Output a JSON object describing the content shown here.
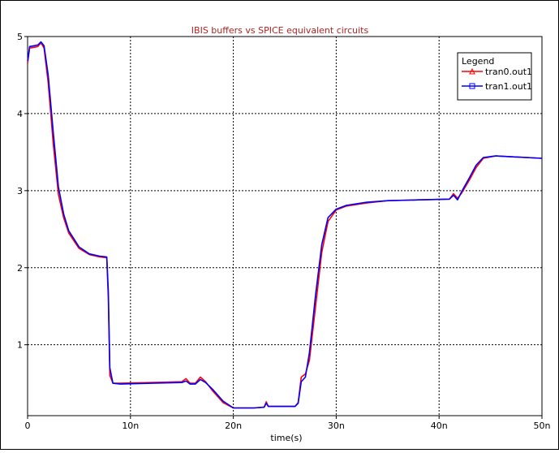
{
  "chart_data": {
    "type": "line",
    "title": "IBIS buffers vs SPICE equivalent circuits",
    "xlabel": "time(s)",
    "ylabel": "",
    "xlim": [
      0,
      50
    ],
    "ylim": [
      0.08,
      5.0
    ],
    "x_ticks": [
      {
        "value": 0,
        "label": "0"
      },
      {
        "value": 10,
        "label": "10n"
      },
      {
        "value": 20,
        "label": "20n"
      },
      {
        "value": 30,
        "label": "30n"
      },
      {
        "value": 40,
        "label": "40n"
      },
      {
        "value": 50,
        "label": "50n"
      }
    ],
    "y_ticks": [
      {
        "value": 1,
        "label": "1"
      },
      {
        "value": 2,
        "label": "2"
      },
      {
        "value": 3,
        "label": "3"
      },
      {
        "value": 4,
        "label": "4"
      },
      {
        "value": 5,
        "label": "5"
      }
    ],
    "grid": true,
    "legend": {
      "title": "Legend",
      "position": "top-right"
    },
    "series": [
      {
        "name": "tran0.out1",
        "color": "#ff0000",
        "marker": "triangle",
        "points": [
          [
            0,
            4.65
          ],
          [
            0.2,
            4.85
          ],
          [
            0.6,
            4.86
          ],
          [
            1.0,
            4.87
          ],
          [
            1.3,
            4.92
          ],
          [
            1.6,
            4.85
          ],
          [
            2.0,
            4.4
          ],
          [
            2.5,
            3.6
          ],
          [
            3.0,
            2.95
          ],
          [
            3.5,
            2.65
          ],
          [
            4.0,
            2.45
          ],
          [
            5.0,
            2.25
          ],
          [
            6.0,
            2.17
          ],
          [
            7.0,
            2.14
          ],
          [
            7.7,
            2.13
          ],
          [
            7.85,
            1.6
          ],
          [
            8.0,
            0.6
          ],
          [
            8.3,
            0.5
          ],
          [
            9.0,
            0.5
          ],
          [
            12.0,
            0.51
          ],
          [
            15.0,
            0.52
          ],
          [
            15.4,
            0.56
          ],
          [
            15.8,
            0.5
          ],
          [
            16.3,
            0.5
          ],
          [
            16.8,
            0.58
          ],
          [
            17.3,
            0.52
          ],
          [
            18.0,
            0.4
          ],
          [
            19.0,
            0.25
          ],
          [
            20.0,
            0.18
          ],
          [
            22.0,
            0.18
          ],
          [
            23.0,
            0.19
          ],
          [
            23.2,
            0.26
          ],
          [
            23.4,
            0.2
          ],
          [
            26.0,
            0.2
          ],
          [
            26.3,
            0.25
          ],
          [
            26.6,
            0.58
          ],
          [
            27.0,
            0.62
          ],
          [
            27.4,
            0.8
          ],
          [
            28.0,
            1.5
          ],
          [
            28.6,
            2.2
          ],
          [
            29.2,
            2.6
          ],
          [
            30.0,
            2.75
          ],
          [
            31.0,
            2.8
          ],
          [
            33.0,
            2.84
          ],
          [
            35.0,
            2.87
          ],
          [
            38.0,
            2.88
          ],
          [
            41.0,
            2.89
          ],
          [
            41.4,
            2.96
          ],
          [
            41.8,
            2.9
          ],
          [
            42.2,
            2.97
          ],
          [
            43.0,
            3.15
          ],
          [
            43.6,
            3.3
          ],
          [
            44.3,
            3.42
          ],
          [
            45.5,
            3.45
          ],
          [
            47.0,
            3.44
          ],
          [
            50.0,
            3.42
          ]
        ]
      },
      {
        "name": "tran1.out1",
        "color": "#0000ff",
        "marker": "square",
        "points": [
          [
            0,
            4.68
          ],
          [
            0.2,
            4.87
          ],
          [
            0.6,
            4.88
          ],
          [
            1.0,
            4.89
          ],
          [
            1.3,
            4.93
          ],
          [
            1.6,
            4.88
          ],
          [
            2.0,
            4.5
          ],
          [
            2.5,
            3.75
          ],
          [
            3.0,
            3.05
          ],
          [
            3.5,
            2.7
          ],
          [
            4.0,
            2.48
          ],
          [
            5.0,
            2.27
          ],
          [
            6.0,
            2.18
          ],
          [
            7.0,
            2.15
          ],
          [
            7.7,
            2.14
          ],
          [
            7.85,
            1.7
          ],
          [
            8.0,
            0.7
          ],
          [
            8.3,
            0.5
          ],
          [
            9.0,
            0.49
          ],
          [
            12.0,
            0.5
          ],
          [
            15.0,
            0.51
          ],
          [
            15.4,
            0.53
          ],
          [
            15.8,
            0.49
          ],
          [
            16.3,
            0.49
          ],
          [
            16.8,
            0.55
          ],
          [
            17.3,
            0.51
          ],
          [
            18.0,
            0.42
          ],
          [
            19.0,
            0.27
          ],
          [
            20.0,
            0.18
          ],
          [
            22.0,
            0.18
          ],
          [
            23.0,
            0.19
          ],
          [
            23.2,
            0.24
          ],
          [
            23.4,
            0.2
          ],
          [
            26.0,
            0.2
          ],
          [
            26.3,
            0.24
          ],
          [
            26.6,
            0.52
          ],
          [
            27.0,
            0.58
          ],
          [
            27.4,
            0.9
          ],
          [
            28.0,
            1.65
          ],
          [
            28.6,
            2.3
          ],
          [
            29.2,
            2.65
          ],
          [
            30.0,
            2.76
          ],
          [
            31.0,
            2.81
          ],
          [
            33.0,
            2.85
          ],
          [
            35.0,
            2.87
          ],
          [
            38.0,
            2.88
          ],
          [
            41.0,
            2.89
          ],
          [
            41.4,
            2.94
          ],
          [
            41.8,
            2.88
          ],
          [
            42.2,
            2.99
          ],
          [
            43.0,
            3.18
          ],
          [
            43.6,
            3.33
          ],
          [
            44.3,
            3.43
          ],
          [
            45.5,
            3.45
          ],
          [
            47.0,
            3.44
          ],
          [
            50.0,
            3.42
          ]
        ]
      }
    ]
  }
}
